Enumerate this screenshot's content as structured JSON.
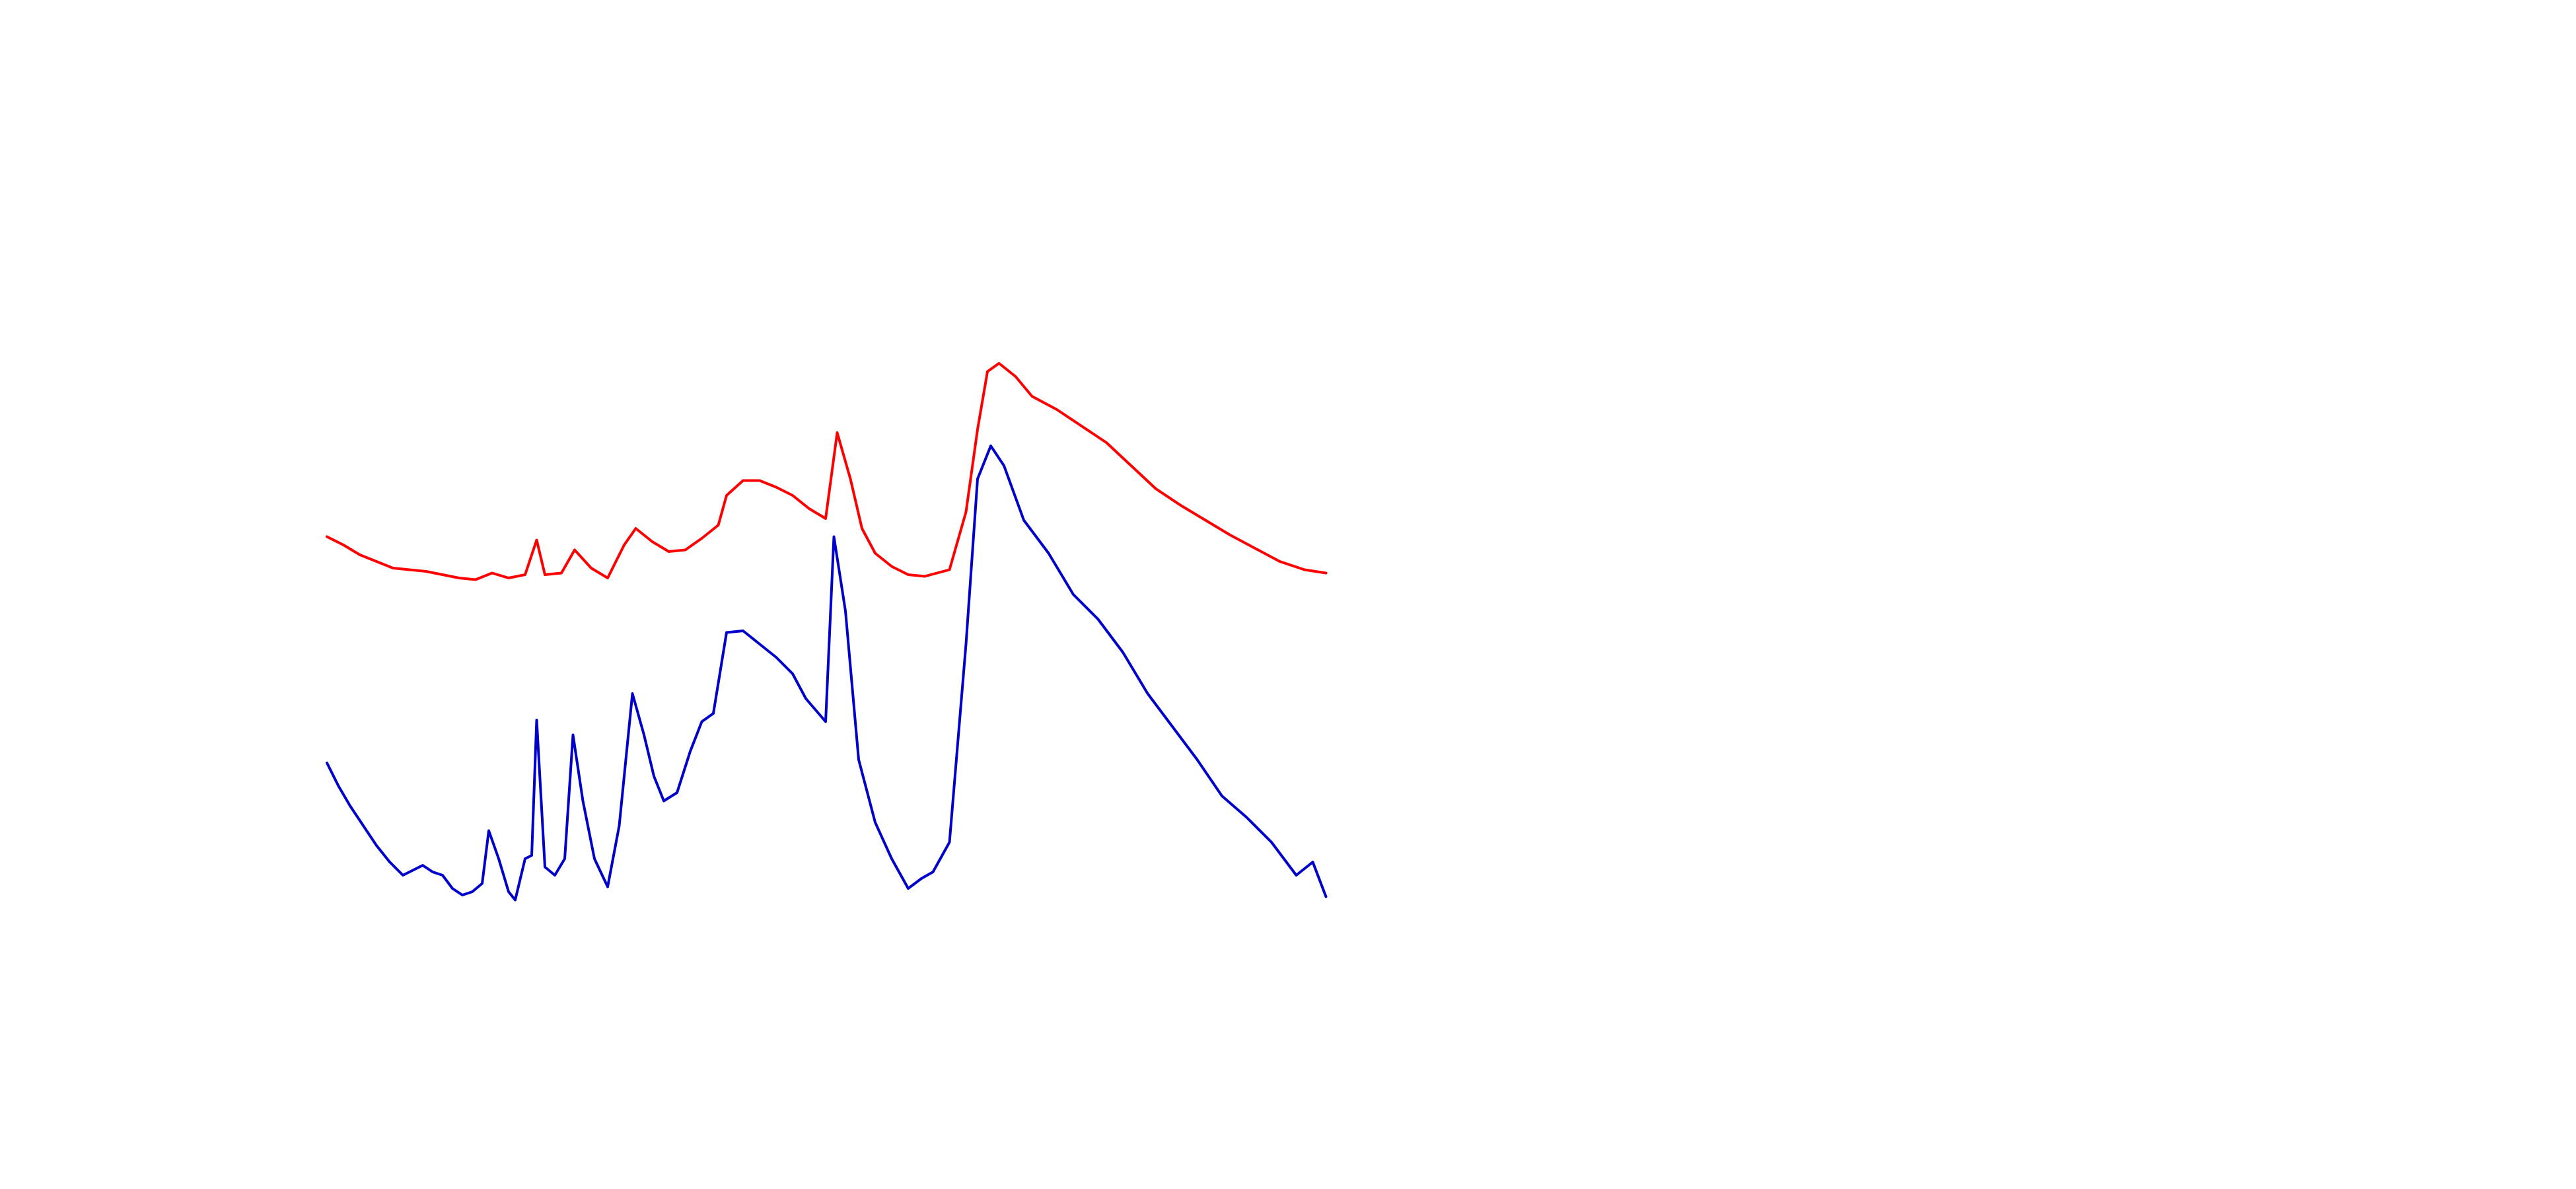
{
  "chart_data": {
    "type": "line",
    "xlim": [
      0,
      1560
    ],
    "ylim": [
      0,
      720
    ],
    "series": [
      {
        "color": "#ff0000",
        "x": [
          198,
          208,
          218,
          228,
          238,
          248,
          258,
          268,
          278,
          288,
          298,
          308,
          318,
          325,
          330,
          340,
          348,
          358,
          368,
          378,
          385,
          395,
          405,
          415,
          425,
          435,
          440,
          450,
          460,
          470,
          480,
          490,
          500,
          507,
          515,
          522,
          530,
          540,
          550,
          560,
          575,
          585,
          592,
          598,
          605,
          615,
          625,
          640,
          655,
          670,
          685,
          700,
          715,
          730,
          745,
          760,
          775,
          790,
          803
        ],
        "values": [
          395,
          390,
          384,
          380,
          376,
          375,
          374,
          372,
          370,
          369,
          373,
          370,
          372,
          393,
          372,
          373,
          387,
          376,
          370,
          390,
          400,
          392,
          386,
          387,
          394,
          402,
          420,
          429,
          429,
          425,
          420,
          412,
          406,
          458,
          430,
          400,
          385,
          377,
          372,
          371,
          375,
          410,
          460,
          495,
          500,
          492,
          480,
          472,
          462,
          452,
          438,
          424,
          414,
          405,
          396,
          388,
          380,
          375,
          373
        ]
      },
      {
        "color": "#0000cc",
        "x": [
          198,
          205,
          212,
          220,
          228,
          236,
          244,
          250,
          256,
          262,
          268,
          274,
          280,
          286,
          292,
          296,
          302,
          308,
          312,
          318,
          322,
          325,
          330,
          336,
          342,
          347,
          353,
          360,
          368,
          375,
          383,
          390,
          396,
          402,
          410,
          418,
          425,
          432,
          440,
          450,
          460,
          470,
          480,
          488,
          500,
          505,
          512,
          520,
          530,
          540,
          550,
          558,
          565,
          575,
          585,
          592,
          600,
          608,
          620,
          635,
          650,
          665,
          680,
          695,
          710,
          725,
          740,
          755,
          770,
          785,
          795,
          803
        ],
        "values": [
          258,
          244,
          232,
          220,
          208,
          198,
          190,
          193,
          196,
          192,
          190,
          182,
          178,
          180,
          185,
          217,
          200,
          180,
          175,
          200,
          202,
          284,
          195,
          190,
          200,
          275,
          235,
          200,
          183,
          220,
          300,
          275,
          250,
          235,
          240,
          265,
          283,
          288,
          337,
          338,
          330,
          322,
          312,
          297,
          283,
          395,
          350,
          260,
          222,
          200,
          182,
          188,
          192,
          210,
          330,
          430,
          450,
          438,
          405,
          385,
          360,
          345,
          325,
          300,
          280,
          260,
          238,
          225,
          210,
          190,
          198,
          177
        ]
      }
    ]
  }
}
